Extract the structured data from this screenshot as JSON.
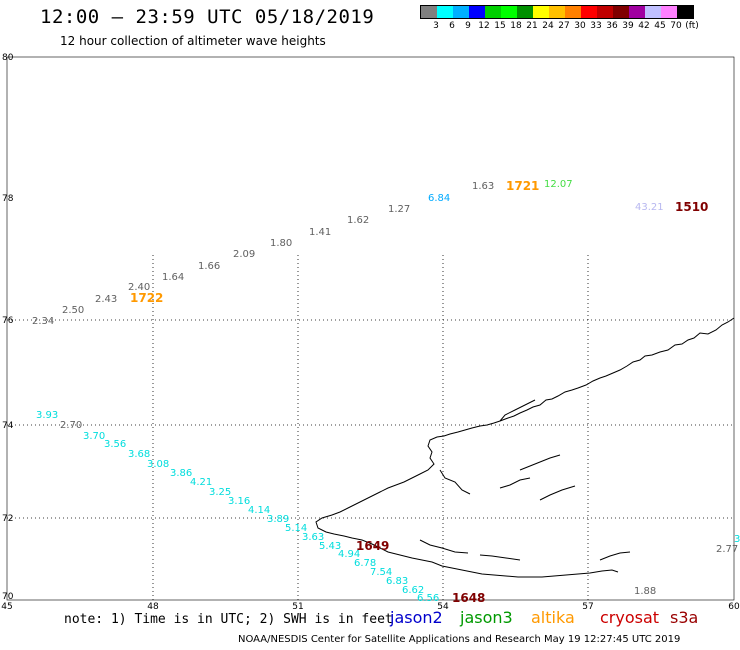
{
  "header": {
    "title": "12:00 – 23:59 UTC 05/18/2019",
    "subtitle": "12 hour collection of altimeter wave heights"
  },
  "color_scale": {
    "swatches": [
      "#808080",
      "#00ffff",
      "#00b0ff",
      "#0000ff",
      "#00d000",
      "#00ff00",
      "#009000",
      "#ffff00",
      "#ffc000",
      "#ff8000",
      "#ff0000",
      "#c00000",
      "#800000",
      "#a000a0",
      "#c0c0ff",
      "#ff80ff",
      "#000000"
    ],
    "ticks": [
      "3",
      "6",
      "9",
      "12",
      "15",
      "18",
      "21",
      "24",
      "27",
      "30",
      "33",
      "36",
      "39",
      "42",
      "45",
      "70",
      "(ft)"
    ]
  },
  "axes": {
    "lat_labels": [
      "80",
      "78",
      "76",
      "74",
      "72",
      "70"
    ],
    "lon_labels": [
      "45",
      "48",
      "51",
      "54",
      "57",
      "60"
    ]
  },
  "observations": [
    {
      "text": "2.34",
      "color": "#606060"
    },
    {
      "text": "2.50",
      "color": "#606060"
    },
    {
      "text": "2.43",
      "color": "#606060"
    },
    {
      "text": "2.40",
      "color": "#606060"
    },
    {
      "text": "1722",
      "color": "#ff9900",
      "big": true
    },
    {
      "text": "1.64",
      "color": "#606060"
    },
    {
      "text": "1.66",
      "color": "#606060"
    },
    {
      "text": "2.09",
      "color": "#606060"
    },
    {
      "text": "1.80",
      "color": "#606060"
    },
    {
      "text": "1.41",
      "color": "#606060"
    },
    {
      "text": "1.62",
      "color": "#606060"
    },
    {
      "text": "1.27",
      "color": "#606060"
    },
    {
      "text": "6.84",
      "color": "#00aaff"
    },
    {
      "text": "1.63",
      "color": "#606060"
    },
    {
      "text": "1721",
      "color": "#ff9900",
      "big": true
    },
    {
      "text": "12.07",
      "color": "#44dd44"
    },
    {
      "text": "43.21",
      "color": "#b8b8f0"
    },
    {
      "text": "1510",
      "color": "#800000",
      "big": true
    },
    {
      "text": "3.93",
      "color": "#00dddd"
    },
    {
      "text": "2.70",
      "color": "#606060"
    },
    {
      "text": "3.70",
      "color": "#00dddd"
    },
    {
      "text": "3.56",
      "color": "#00dddd"
    },
    {
      "text": "3.68",
      "color": "#00dddd"
    },
    {
      "text": "3.08",
      "color": "#00dddd"
    },
    {
      "text": "3.86",
      "color": "#00dddd"
    },
    {
      "text": "4.21",
      "color": "#00dddd"
    },
    {
      "text": "3.25",
      "color": "#00dddd"
    },
    {
      "text": "3.16",
      "color": "#00dddd"
    },
    {
      "text": "4.14",
      "color": "#00dddd"
    },
    {
      "text": "3.89",
      "color": "#00dddd"
    },
    {
      "text": "5.14",
      "color": "#00dddd"
    },
    {
      "text": "3.63",
      "color": "#00dddd"
    },
    {
      "text": "5.43",
      "color": "#00dddd"
    },
    {
      "text": "4.94",
      "color": "#00dddd"
    },
    {
      "text": "1649",
      "color": "#800000",
      "big": true
    },
    {
      "text": "6.78",
      "color": "#00dddd"
    },
    {
      "text": "7.54",
      "color": "#00dddd"
    },
    {
      "text": "6.83",
      "color": "#00dddd"
    },
    {
      "text": "6.62",
      "color": "#00dddd"
    },
    {
      "text": "6.56",
      "color": "#00dddd"
    },
    {
      "text": "1648",
      "color": "#800000",
      "big": true
    },
    {
      "text": "1.88",
      "color": "#606060"
    },
    {
      "text": "2.77",
      "color": "#606060"
    },
    {
      "text": "3",
      "color": "#00dddd"
    }
  ],
  "footer": {
    "note": "note: 1) Time is in UTC; 2) SWH is in feet",
    "satellites": [
      {
        "name": "jason2",
        "color": "#0000cc"
      },
      {
        "name": "jason3",
        "color": "#009900"
      },
      {
        "name": "altika",
        "color": "#ff9900"
      },
      {
        "name": "cryosat",
        "color": "#cc0000"
      },
      {
        "name": "s3a",
        "color": "#990000"
      }
    ],
    "credit": "NOAA/NESDIS Center for Satellite Applications and Research    May 19 12:27:45 UTC 2019"
  }
}
